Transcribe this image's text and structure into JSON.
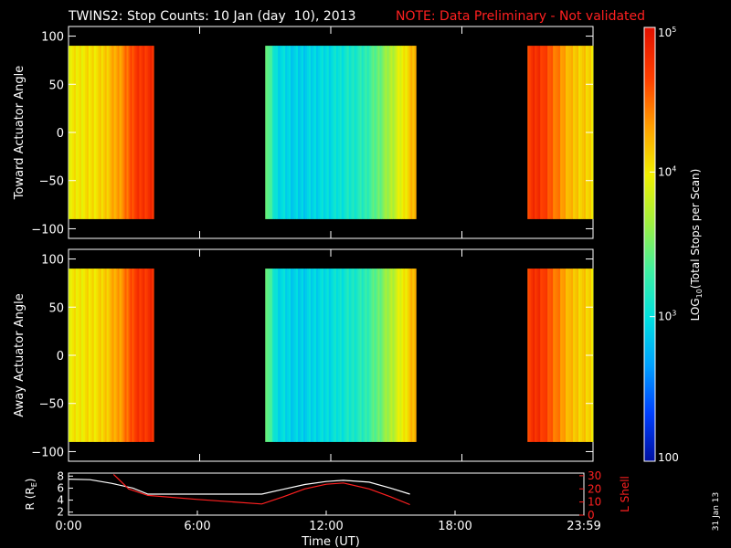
{
  "header": {
    "title": "TWINS2: Stop Counts: 10 Jan (day  10), 2013",
    "note": "NOTE: Data Preliminary - Not validated",
    "date_stamp": "31 Jan 13"
  },
  "colors": {
    "background": "#000000",
    "note": "#ff2020",
    "lshell": "#ff2020",
    "radius": "#ffffff",
    "colormap": [
      "#0010a0",
      "#0040ff",
      "#00a0ff",
      "#00e0e0",
      "#40f0a0",
      "#a0f040",
      "#f0f000",
      "#ffa000",
      "#ff4000",
      "#e01000"
    ]
  },
  "colorbar": {
    "label": "LOG10(Total Stops per Scan)",
    "label_base": "LOG",
    "label_sub": "10",
    "label_rest": "(Total Stops per Scan)",
    "ticks": [
      {
        "text": "100",
        "exp": "",
        "value": 100
      },
      {
        "text": "10",
        "exp": "3",
        "value": 1000
      },
      {
        "text": "10",
        "exp": "4",
        "value": 10000
      },
      {
        "text": "10",
        "exp": "5",
        "value": 100000
      }
    ],
    "range": [
      100,
      100000
    ],
    "scale": "log"
  },
  "chart_data": [
    {
      "type": "heatmap",
      "panel": "top",
      "ylabel": "Toward Actuator Angle",
      "yticks": [
        "100",
        "50",
        "0",
        "−50",
        "−100"
      ],
      "ytick_values": [
        100,
        50,
        0,
        -50,
        -100
      ],
      "ylim": [
        -110,
        110
      ],
      "xlim_hours": [
        0,
        24
      ],
      "data_angle_range": [
        -90,
        90
      ],
      "segments": [
        {
          "start_h": 0.0,
          "end_h": 3.9,
          "profile": [
            [
              0.0,
              4.0
            ],
            [
              1.5,
              4.1
            ],
            [
              2.5,
              4.4
            ],
            [
              3.0,
              4.7
            ],
            [
              3.9,
              4.8
            ]
          ]
        },
        {
          "start_h": 9.0,
          "end_h": 15.9,
          "profile": [
            [
              9.0,
              3.6
            ],
            [
              9.5,
              3.0
            ],
            [
              10.5,
              2.9
            ],
            [
              12.0,
              3.0
            ],
            [
              13.5,
              3.2
            ],
            [
              14.5,
              3.6
            ],
            [
              15.5,
              4.1
            ],
            [
              15.9,
              4.3
            ]
          ]
        },
        {
          "start_h": 21.0,
          "end_h": 24.0,
          "profile": [
            [
              21.0,
              4.7
            ],
            [
              21.5,
              4.8
            ],
            [
              22.5,
              4.4
            ],
            [
              23.0,
              4.2
            ],
            [
              24.0,
              4.1
            ]
          ]
        }
      ]
    },
    {
      "type": "heatmap",
      "panel": "middle",
      "ylabel": "Away Actuator Angle",
      "yticks": [
        "100",
        "50",
        "0",
        "−50",
        "−100"
      ],
      "ytick_values": [
        100,
        50,
        0,
        -50,
        -100
      ],
      "ylim": [
        -110,
        110
      ],
      "xlim_hours": [
        0,
        24
      ],
      "data_angle_range": [
        -90,
        90
      ],
      "segments": [
        {
          "start_h": 0.0,
          "end_h": 3.9,
          "profile": [
            [
              0.0,
              4.0
            ],
            [
              1.5,
              4.1
            ],
            [
              2.5,
              4.4
            ],
            [
              3.0,
              4.7
            ],
            [
              3.9,
              4.8
            ]
          ]
        },
        {
          "start_h": 9.0,
          "end_h": 15.9,
          "profile": [
            [
              9.0,
              3.6
            ],
            [
              9.5,
              3.0
            ],
            [
              10.5,
              2.9
            ],
            [
              12.0,
              3.0
            ],
            [
              13.5,
              3.2
            ],
            [
              14.5,
              3.6
            ],
            [
              15.5,
              4.1
            ],
            [
              15.9,
              4.3
            ]
          ]
        },
        {
          "start_h": 21.0,
          "end_h": 24.0,
          "profile": [
            [
              21.0,
              4.7
            ],
            [
              21.5,
              4.8
            ],
            [
              22.5,
              4.4
            ],
            [
              23.0,
              4.2
            ],
            [
              24.0,
              4.1
            ]
          ]
        }
      ]
    },
    {
      "type": "line",
      "panel": "bottom",
      "xlabel": "Time (UT)",
      "xticks": [
        "0:00",
        "6:00",
        "12:00",
        "18:00",
        "23:59"
      ],
      "xtick_hours": [
        0,
        6,
        12,
        18,
        24
      ],
      "xlim_hours": [
        0,
        24
      ],
      "left_axis": {
        "label": "R (RE)",
        "label_main": "R (R",
        "label_sub": "E",
        "label_close": ")",
        "ticks": [
          "2",
          "4",
          "6",
          "8"
        ],
        "tick_values": [
          2,
          4,
          6,
          8
        ],
        "range": [
          1.5,
          8.5
        ]
      },
      "right_axis": {
        "label": "L Shell",
        "ticks": [
          "0",
          "10",
          "20",
          "30"
        ],
        "tick_values": [
          0,
          10,
          20,
          30
        ],
        "range": [
          0,
          32
        ]
      },
      "series": [
        {
          "name": "R (RE)",
          "axis": "left",
          "x": [
            0,
            1,
            2,
            3,
            3.7,
            6,
            9,
            10,
            11,
            12,
            12.8,
            14,
            15,
            15.9
          ],
          "y": [
            7.5,
            7.4,
            6.8,
            6.0,
            5.0,
            5.0,
            5.0,
            5.8,
            6.6,
            7.1,
            7.3,
            7.0,
            6.0,
            5.0
          ]
        },
        {
          "name": "L Shell",
          "axis": "right",
          "x": [
            2.1,
            2.8,
            3.7,
            6,
            9,
            10,
            11,
            12,
            12.8,
            14,
            15,
            15.9
          ],
          "y": [
            31,
            20,
            15,
            12,
            8.5,
            14,
            20,
            23.5,
            24.5,
            20,
            14,
            8
          ]
        }
      ]
    }
  ]
}
